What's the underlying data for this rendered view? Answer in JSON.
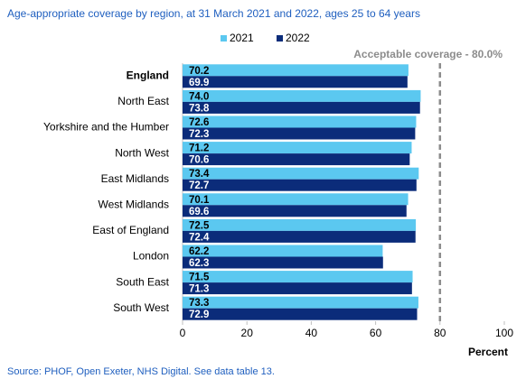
{
  "chart_data": {
    "type": "hbar",
    "title": "Age-appropriate  coverage  by region, at 31 March 2021 and 2022, ages 25 to 64 years",
    "categories": [
      "England",
      "North East",
      "Yorkshire and the Humber",
      "North West",
      "East Midlands",
      "West Midlands",
      "East of England",
      "London",
      "South East",
      "South West"
    ],
    "series": [
      {
        "name": "2021",
        "color": "#5bc8f0",
        "label_color": "#000000",
        "values": [
          70.2,
          74.0,
          72.6,
          71.2,
          73.4,
          70.1,
          72.5,
          62.2,
          71.5,
          73.3
        ],
        "value_labels": [
          "70.2",
          "74.0",
          "72.6",
          "71.2",
          "73.4",
          "70.1",
          "72.5",
          "62.2",
          "71.5",
          "73.3"
        ]
      },
      {
        "name": "2022",
        "color": "#0b2c7a",
        "label_color": "#ffffff",
        "values": [
          69.9,
          73.8,
          72.3,
          70.6,
          72.7,
          69.6,
          72.4,
          62.3,
          71.3,
          72.9
        ],
        "value_labels": [
          "69.9",
          "73.8",
          "72.3",
          "70.6",
          "72.7",
          "69.6",
          "72.4",
          "62.3",
          "71.3",
          "72.9"
        ]
      }
    ],
    "xlim": [
      0,
      100
    ],
    "xticks": [
      0,
      20,
      40,
      60,
      80,
      100
    ],
    "xlabel": "Percent",
    "reference_line": {
      "value": 80,
      "label": "Acceptable coverage - 80.0%",
      "color": "#8c8c8c"
    },
    "legend": "top",
    "source": "Source: PHOF,  Open Exeter, NHS Digital. See data table 13."
  }
}
